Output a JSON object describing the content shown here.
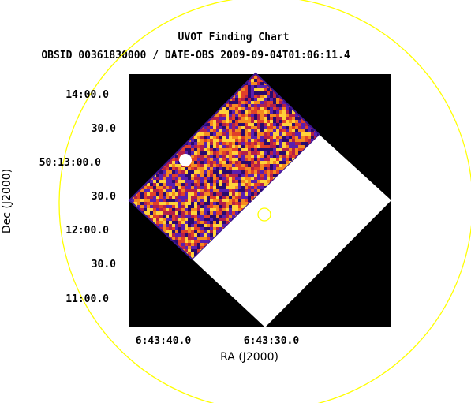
{
  "chart_data": {
    "type": "image",
    "title": "UVOT Finding Chart",
    "subtitle": "OBSID 00361830000 / DATE-OBS 2009-09-04T01:06:11.4",
    "xlabel": "RA (J2000)",
    "ylabel": "Dec (J2000)",
    "x_ticks": [
      "6:43:40.0",
      "6:43:30.0"
    ],
    "y_ticks": [
      "14:00.0",
      "30.0",
      "50:13:00.0",
      "30.0",
      "12:00.0",
      "30.0",
      "11:00.0"
    ],
    "colors": {
      "background": "#000000",
      "axes_text": "#000000",
      "circle": "#ffff00",
      "saturated": "#ffffff",
      "heat": [
        "#2a0a6e",
        "#5a1fb0",
        "#b3204a",
        "#e0402a",
        "#f58a1f",
        "#ffd23a"
      ]
    },
    "annotations": [
      "large-field-circle",
      "target-circle"
    ]
  }
}
